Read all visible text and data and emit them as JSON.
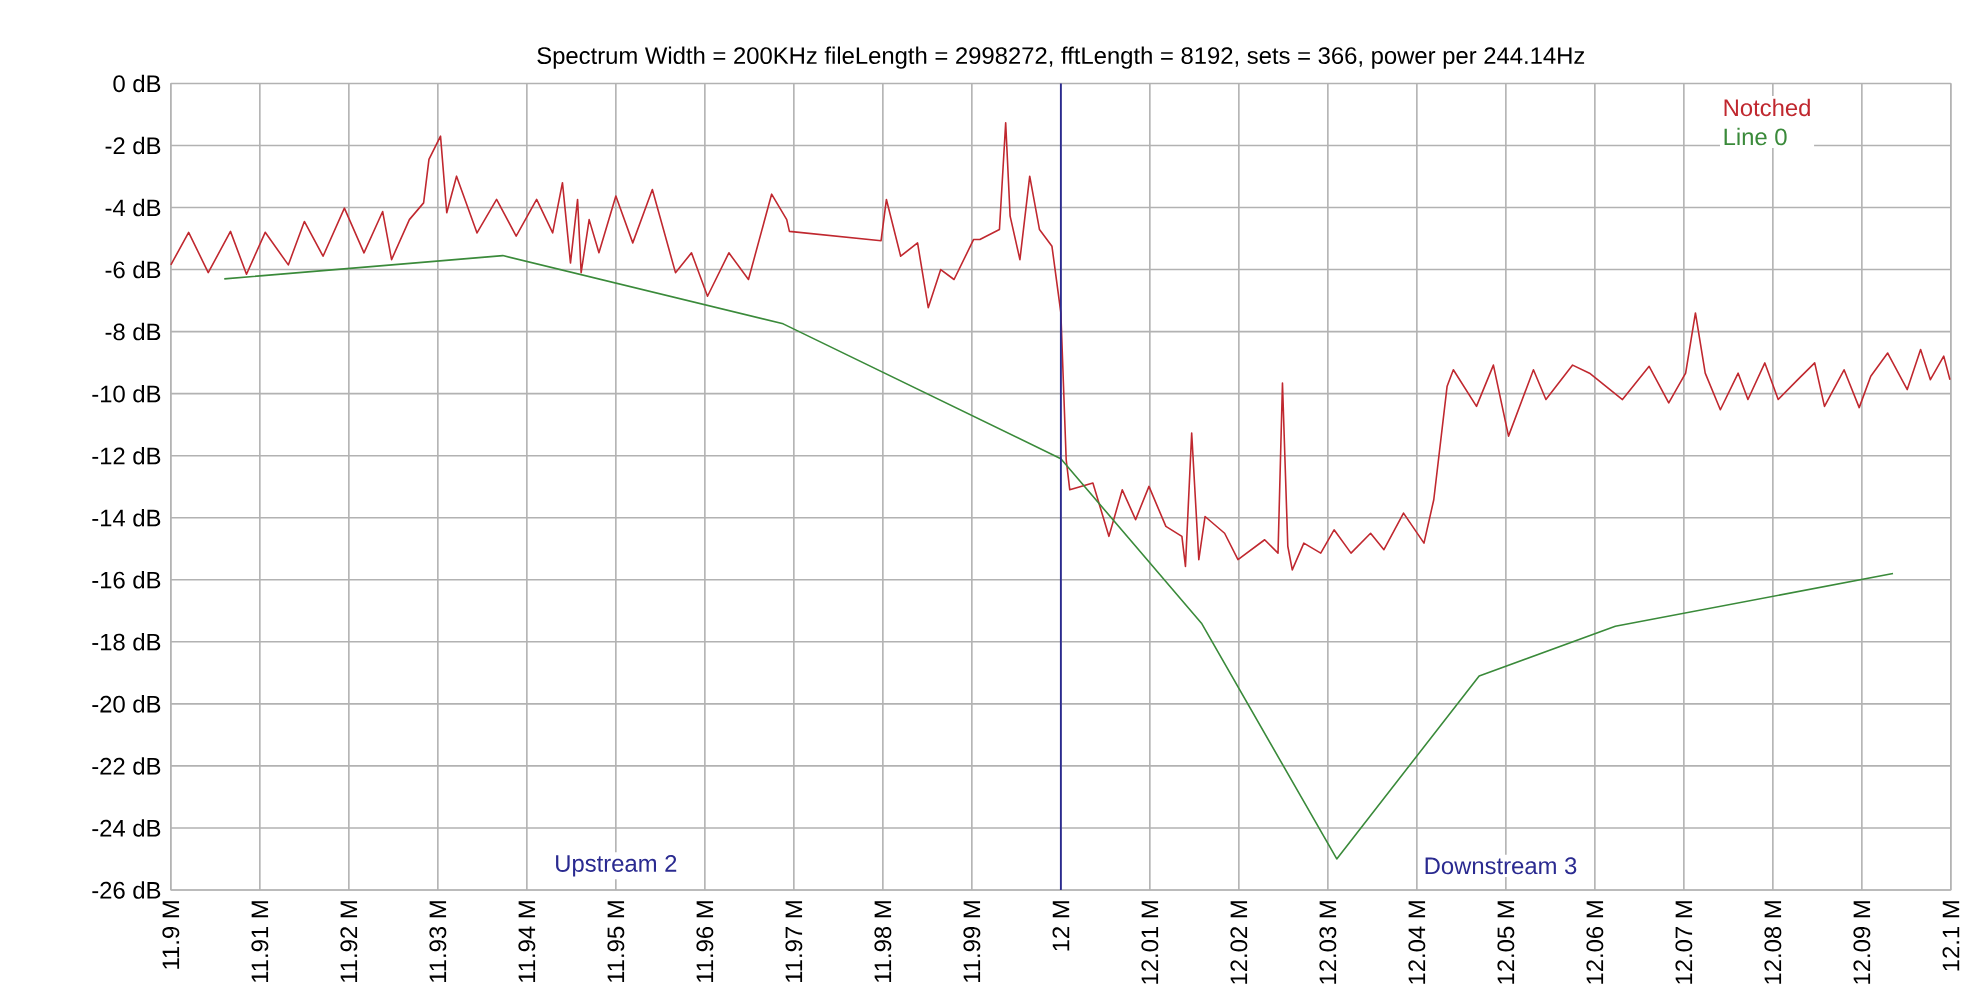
{
  "chart_data": {
    "type": "line",
    "title": "Spectrum Width =    200KHz fileLength = 2998272, fftLength = 8192, sets = 366, power per   244.14Hz",
    "xlim": [
      11.9,
      12.1
    ],
    "ylim": [
      -26,
      0
    ],
    "xticks": [
      {
        "value": 11.9,
        "label": "11.9 M"
      },
      {
        "value": 11.91,
        "label": "11.91 M"
      },
      {
        "value": 11.92,
        "label": "11.92 M"
      },
      {
        "value": 11.93,
        "label": "11.93 M"
      },
      {
        "value": 11.94,
        "label": "11.94 M"
      },
      {
        "value": 11.95,
        "label": "11.95 M"
      },
      {
        "value": 11.96,
        "label": "11.96 M"
      },
      {
        "value": 11.97,
        "label": "11.97 M"
      },
      {
        "value": 11.98,
        "label": "11.98 M"
      },
      {
        "value": 11.99,
        "label": "11.99 M"
      },
      {
        "value": 12.0,
        "label": "12 M"
      },
      {
        "value": 12.01,
        "label": "12.01 M"
      },
      {
        "value": 12.02,
        "label": "12.02 M"
      },
      {
        "value": 12.03,
        "label": "12.03 M"
      },
      {
        "value": 12.04,
        "label": "12.04 M"
      },
      {
        "value": 12.05,
        "label": "12.05 M"
      },
      {
        "value": 12.06,
        "label": "12.06 M"
      },
      {
        "value": 12.07,
        "label": "12.07 M"
      },
      {
        "value": 12.08,
        "label": "12.08 M"
      },
      {
        "value": 12.09,
        "label": "12.09 M"
      },
      {
        "value": 12.1,
        "label": "12.1 M"
      }
    ],
    "yticks": [
      {
        "value": 0,
        "label": "0 dB"
      },
      {
        "value": -2,
        "label": "-2 dB"
      },
      {
        "value": -4,
        "label": "-4 dB"
      },
      {
        "value": -6,
        "label": "-6 dB"
      },
      {
        "value": -8,
        "label": "-8 dB"
      },
      {
        "value": -10,
        "label": "-10 dB"
      },
      {
        "value": -12,
        "label": "-12 dB"
      },
      {
        "value": -14,
        "label": "-14 dB"
      },
      {
        "value": -16,
        "label": "-16 dB"
      },
      {
        "value": -18,
        "label": "-18 dB"
      },
      {
        "value": -20,
        "label": "-20 dB"
      },
      {
        "value": -22,
        "label": "-22 dB"
      },
      {
        "value": -24,
        "label": "-24 dB"
      },
      {
        "value": -26,
        "label": "-26 dB"
      }
    ],
    "grid": true,
    "legend": "top right",
    "marker": "none",
    "line_style": "solid",
    "ref_lines": [
      {
        "axis": "x",
        "value": 12.0,
        "color": "#2a2a90"
      }
    ],
    "annotations": [
      "Upstream 2",
      "Downstream 3"
    ],
    "series": [
      {
        "name": "Notched",
        "color": "#c0282f",
        "x": [
          11.9,
          11.902,
          11.9042,
          11.9067,
          11.9085,
          11.9106,
          11.9132,
          11.915,
          11.9171,
          11.9195,
          11.9217,
          11.9238,
          11.9248,
          11.9268,
          11.9284,
          11.929,
          11.9303,
          11.931,
          11.9321,
          11.9344,
          11.9366,
          11.9388,
          11.9411,
          11.9429,
          11.944,
          11.9449,
          11.9457,
          11.9461,
          11.947,
          11.9481,
          11.95,
          11.9519,
          11.9541,
          11.9567,
          11.9585,
          11.9603,
          11.9627,
          11.9649,
          11.9675,
          11.9692,
          11.9695,
          11.9798,
          11.9804,
          11.982,
          11.9839,
          11.9851,
          11.9865,
          11.988,
          11.9902,
          11.9909,
          11.9931,
          11.9938,
          11.9943,
          11.9954,
          11.9965,
          11.9976,
          11.999,
          11.9997,
          12.0,
          12.0006,
          12.001,
          12.0036,
          12.0054,
          12.0069,
          12.0084,
          12.0099,
          12.0118,
          12.0136,
          12.014,
          12.0147,
          12.0155,
          12.0162,
          12.0184,
          12.0199,
          12.0229,
          12.0244,
          12.0249,
          12.0255,
          12.026,
          12.0273,
          12.0292,
          12.0307,
          12.0326,
          12.0348,
          12.0363,
          12.0385,
          12.0408,
          12.0419,
          12.0434,
          12.0441,
          12.0467,
          12.0486,
          12.0503,
          12.0531,
          12.0545,
          12.0575,
          12.0594,
          12.0631,
          12.0661,
          12.0683,
          12.0702,
          12.0713,
          12.0724,
          12.0741,
          12.0761,
          12.0772,
          12.0791,
          12.0806,
          12.0828,
          12.0847,
          12.0858,
          12.088,
          12.0897,
          12.091,
          12.0929,
          12.0951,
          12.0966,
          12.0977,
          12.0992,
          12.0999
        ],
        "values": [
          -5.85,
          -4.8,
          -6.1,
          -4.77,
          -6.15,
          -4.8,
          -5.85,
          -4.45,
          -5.57,
          -4.02,
          -5.46,
          -4.13,
          -5.68,
          -4.39,
          -3.85,
          -2.45,
          -1.7,
          -4.17,
          -2.99,
          -4.82,
          -3.74,
          -4.92,
          -3.74,
          -4.82,
          -3.2,
          -5.79,
          -3.74,
          -6.1,
          -4.39,
          -5.46,
          -3.63,
          -5.14,
          -3.42,
          -6.1,
          -5.46,
          -6.86,
          -5.46,
          -6.32,
          -3.57,
          -4.39,
          -4.77,
          -5.07,
          -3.74,
          -5.57,
          -5.14,
          -7.23,
          -6.0,
          -6.32,
          -5.03,
          -5.03,
          -4.71,
          -1.27,
          -4.28,
          -5.68,
          -2.99,
          -4.71,
          -5.25,
          -6.75,
          -7.4,
          -12.13,
          -13.1,
          -12.88,
          -14.6,
          -13.1,
          -14.06,
          -12.99,
          -14.28,
          -14.6,
          -15.57,
          -11.27,
          -15.35,
          -13.96,
          -14.5,
          -15.35,
          -14.71,
          -15.14,
          -9.66,
          -14.92,
          -15.68,
          -14.82,
          -15.14,
          -14.39,
          -15.14,
          -14.5,
          -15.03,
          -13.85,
          -14.82,
          -13.42,
          -9.76,
          -9.23,
          -10.41,
          -9.08,
          -11.37,
          -9.23,
          -10.19,
          -9.08,
          -9.34,
          -10.19,
          -9.12,
          -10.3,
          -9.34,
          -7.4,
          -9.34,
          -10.52,
          -9.34,
          -10.19,
          -9.01,
          -10.19,
          -9.55,
          -9.01,
          -10.41,
          -9.23,
          -10.45,
          -9.44,
          -8.69,
          -9.87,
          -8.58,
          -9.55,
          -8.79,
          -9.55
        ]
      },
      {
        "name": "Line 0",
        "color": "#3a8a3a",
        "x": [
          11.906,
          11.9373,
          11.9688,
          12.0,
          12.0158,
          12.031,
          12.047,
          12.0623,
          12.0935
        ],
        "values": [
          -6.3,
          -5.55,
          -7.75,
          -12.1,
          -17.4,
          -25.0,
          -19.1,
          -17.5,
          -15.8
        ]
      }
    ]
  }
}
